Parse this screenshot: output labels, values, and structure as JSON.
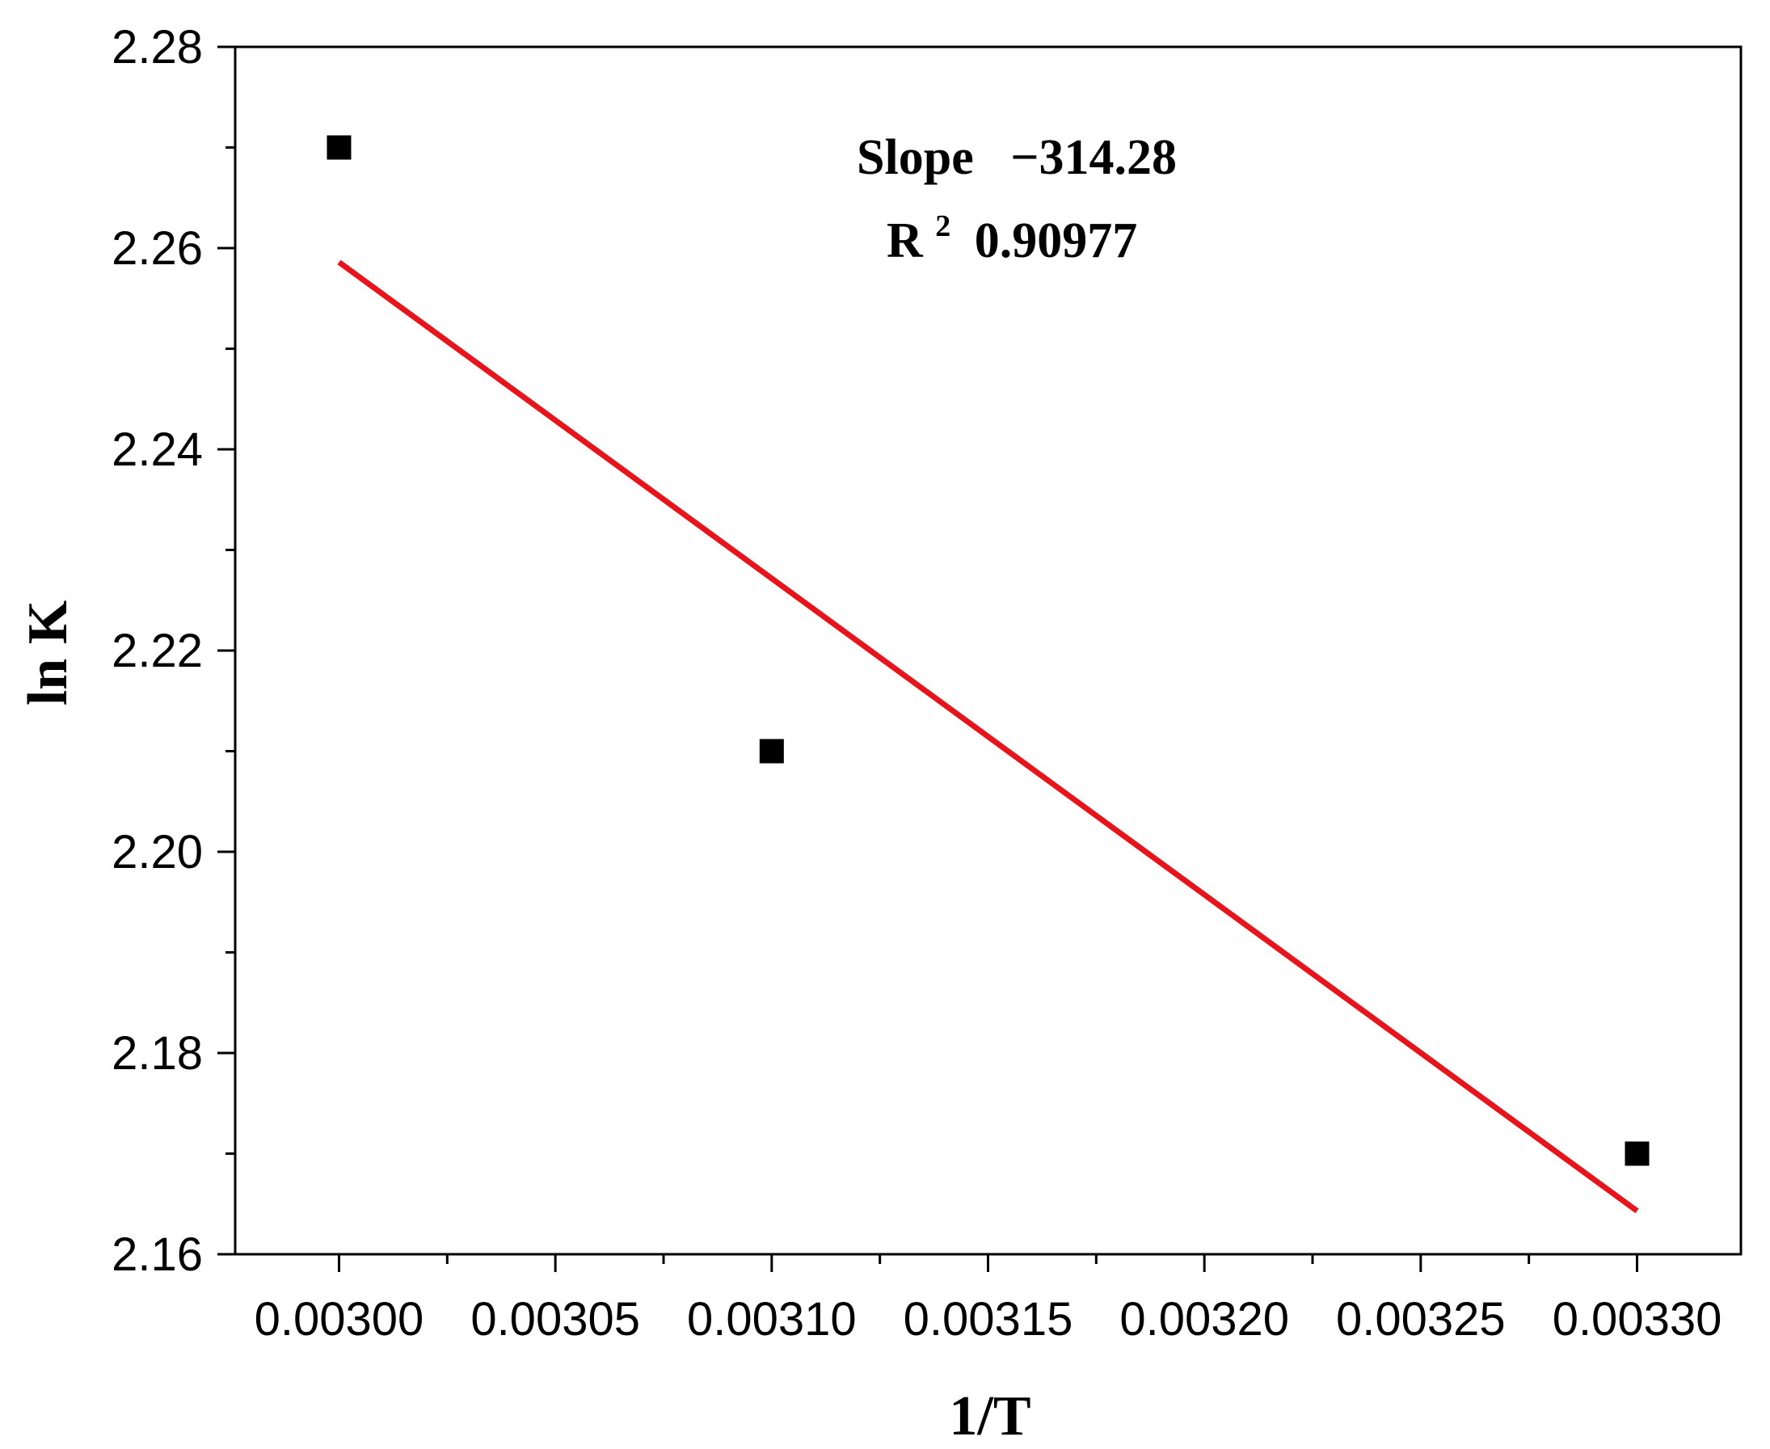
{
  "chart_data": {
    "type": "scatter",
    "xlabel": "1/T",
    "ylabel": "ln K",
    "xlim": [
      0.002976,
      0.003324
    ],
    "ylim": [
      2.16,
      2.28
    ],
    "x_ticks": [
      0.003,
      0.00305,
      0.0031,
      0.00315,
      0.0032,
      0.00325,
      0.0033
    ],
    "x_tick_labels": [
      "0.00300",
      "0.00305",
      "0.00310",
      "0.00315",
      "0.00320",
      "0.00325",
      "0.00330"
    ],
    "y_ticks": [
      2.16,
      2.18,
      2.2,
      2.22,
      2.24,
      2.26,
      2.28
    ],
    "y_tick_labels": [
      "2.16",
      "2.18",
      "2.20",
      "2.22",
      "2.24",
      "2.26",
      "2.28"
    ],
    "grid": false,
    "series": [
      {
        "marker": "square",
        "color": "#000000",
        "points": [
          {
            "x": 0.003,
            "y": 2.27
          },
          {
            "x": 0.0031,
            "y": 2.21
          },
          {
            "x": 0.0033,
            "y": 2.17
          }
        ]
      }
    ],
    "fit_line": {
      "color": "#e8141b",
      "x": [
        0.003,
        0.0033
      ],
      "y": [
        2.2586,
        2.1643
      ]
    },
    "annotations": {
      "slope_label": "Slope",
      "slope_value": "−314.28",
      "r2_label": "R",
      "r2_sup": "2",
      "r2_value": "0.90977"
    }
  }
}
